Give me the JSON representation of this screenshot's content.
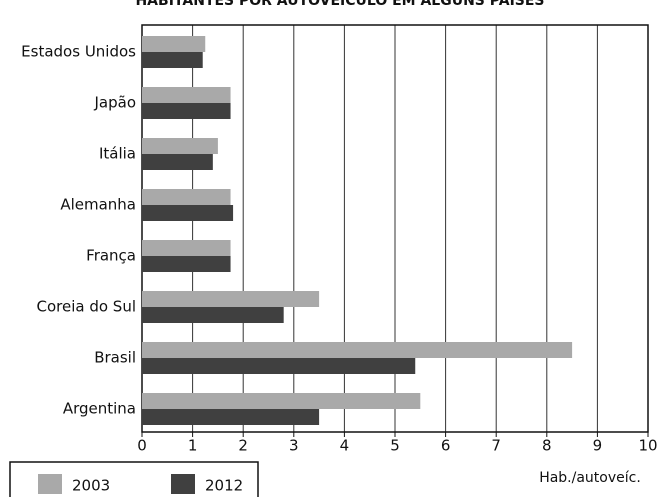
{
  "chart_data": {
    "type": "hbar",
    "title": "HABITANTES POR AUTOVEÍCULO EM ALGUNS PAÍSES",
    "x_label": "Hab./autoveíc.",
    "categories": [
      "Estados Unidos",
      "Japão",
      "Itália",
      "Alemanha",
      "França",
      "Coreia do Sul",
      "Brasil",
      "Argentina"
    ],
    "series": [
      {
        "name": "2003",
        "color": "#a9a9a9",
        "values": [
          1.25,
          1.75,
          1.5,
          1.75,
          1.75,
          3.5,
          8.5,
          5.5
        ]
      },
      {
        "name": "2012",
        "color": "#404040",
        "values": [
          1.2,
          1.75,
          1.4,
          1.8,
          1.75,
          2.8,
          5.4,
          3.5
        ]
      }
    ],
    "xlim": [
      0,
      10
    ],
    "xticks": [
      0,
      1,
      2,
      3,
      4,
      5,
      6,
      7,
      8,
      9,
      10
    ],
    "grid": true
  }
}
